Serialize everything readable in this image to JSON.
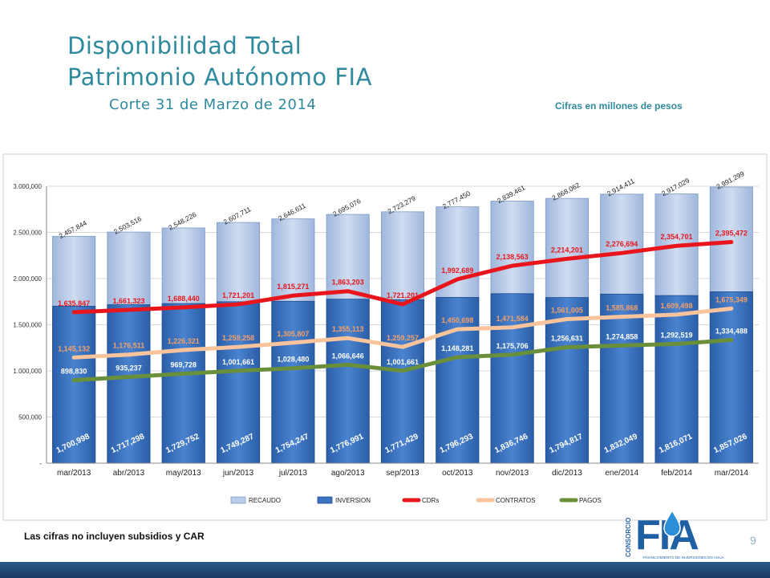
{
  "header": {
    "title_line1": "Disponibilidad Total",
    "title_line2": "Patrimonio Autónomo FIA",
    "subtitle": "Corte 31 de Marzo de 2014",
    "units_note": "Cifras en millones de pesos"
  },
  "footer": {
    "note": "Las cifras no incluyen subsidios y CAR",
    "page_number": "9",
    "logo": {
      "vertical_text": "CONSORCIO",
      "wordmark": "FIA",
      "tagline": "FINANCIAMIENTO DE INVERSIONES EN AGUA"
    }
  },
  "colors": {
    "recaudo": "#b9cce8",
    "inversion": "#3c73bf",
    "cdrs": "#e8161c",
    "contratos": "#f9c49c",
    "pagos": "#6a8f3a",
    "title": "#2e8a9c"
  },
  "chart_data": {
    "type": "bar",
    "categories": [
      "mar/2013",
      "abr/2013",
      "may/2013",
      "jun/2013",
      "jul/2013",
      "ago/2013",
      "sep/2013",
      "oct/2013",
      "nov/2013",
      "dic/2013",
      "ene/2014",
      "feb/2014",
      "mar/2014"
    ],
    "ylim": [
      0,
      3000000
    ],
    "yticks": [
      0,
      500000,
      1000000,
      1500000,
      2000000,
      2500000,
      3000000
    ],
    "ytick_labels": [
      "-",
      "500,000",
      "1.000,000",
      "1.500,000",
      "2.000,000",
      "2.500,000",
      "3.000,000"
    ],
    "grid": true,
    "legend_position": "bottom",
    "series": [
      {
        "name": "RECAUDO",
        "type": "bar",
        "values": [
          2457844,
          2503516,
          2548226,
          2607711,
          2646611,
          2695076,
          2723279,
          2777450,
          2839461,
          2868062,
          2914411,
          2917029,
          2991299
        ],
        "labels": [
          "2,457,844",
          "2,503,516",
          "2,548,226",
          "2,607,711",
          "2,646,611",
          "2,695,076",
          "2,723,279",
          "2,777,450",
          "2,839,461",
          "2,868,062",
          "2,914,411",
          "2,917,029",
          "2,991,299"
        ]
      },
      {
        "name": "INVERSION",
        "type": "bar",
        "values": [
          1700998,
          1717298,
          1729752,
          1749287,
          1754247,
          1776991,
          1771429,
          1796293,
          1836746,
          1794817,
          1832049,
          1816071,
          1857026
        ],
        "labels": [
          "1,700,998",
          "1,717,298",
          "1,729,752",
          "1,749,287",
          "1,754,247",
          "1,776,991",
          "1,771,429",
          "1,796,293",
          "1,836,746",
          "1,794,817",
          "1,832,049",
          "1,816,071",
          "1,857,026"
        ]
      },
      {
        "name": "CDRs",
        "type": "line",
        "values": [
          1635847,
          1661323,
          1688440,
          1721201,
          1815271,
          1863203,
          1721201,
          1992689,
          2138563,
          2214201,
          2276694,
          2354701,
          2395472
        ],
        "labels": [
          "1,635,847",
          "1,661,323",
          "1,688,440",
          "1,721,201",
          "1,815,271",
          "1,863,203",
          "1,721,201",
          "1,992,689",
          "2,138,563",
          "2,214,201",
          "2,276,694",
          "2,354,701",
          "2,395,472"
        ]
      },
      {
        "name": "CONTRATOS",
        "type": "line",
        "values": [
          1145132,
          1176511,
          1226321,
          1259258,
          1305807,
          1355113,
          1259257,
          1450698,
          1471584,
          1561005,
          1585868,
          1609498,
          1675349
        ],
        "labels": [
          "1,145,132",
          "1,176,511",
          "1,226,321",
          "1,259,258",
          "1,305,807",
          "1,355,113",
          "1,259,257",
          "1,450,698",
          "1,471,584",
          "1,561,005",
          "1,585,868",
          "1,609,498",
          "1,675,349"
        ]
      },
      {
        "name": "PAGOS",
        "type": "line",
        "values": [
          898830,
          935237,
          969728,
          1001661,
          1028480,
          1066646,
          1001661,
          1148281,
          1175706,
          1256631,
          1274858,
          1292519,
          1334488
        ],
        "labels": [
          "898,830",
          "935,237",
          "969,728",
          "1,001,661",
          "1,028,480",
          "1,066,646",
          "1,001,661",
          "1,148,281",
          "1,175,706",
          "1,256,631",
          "1,274,858",
          "1,292,519",
          "1,334,488"
        ]
      }
    ]
  }
}
